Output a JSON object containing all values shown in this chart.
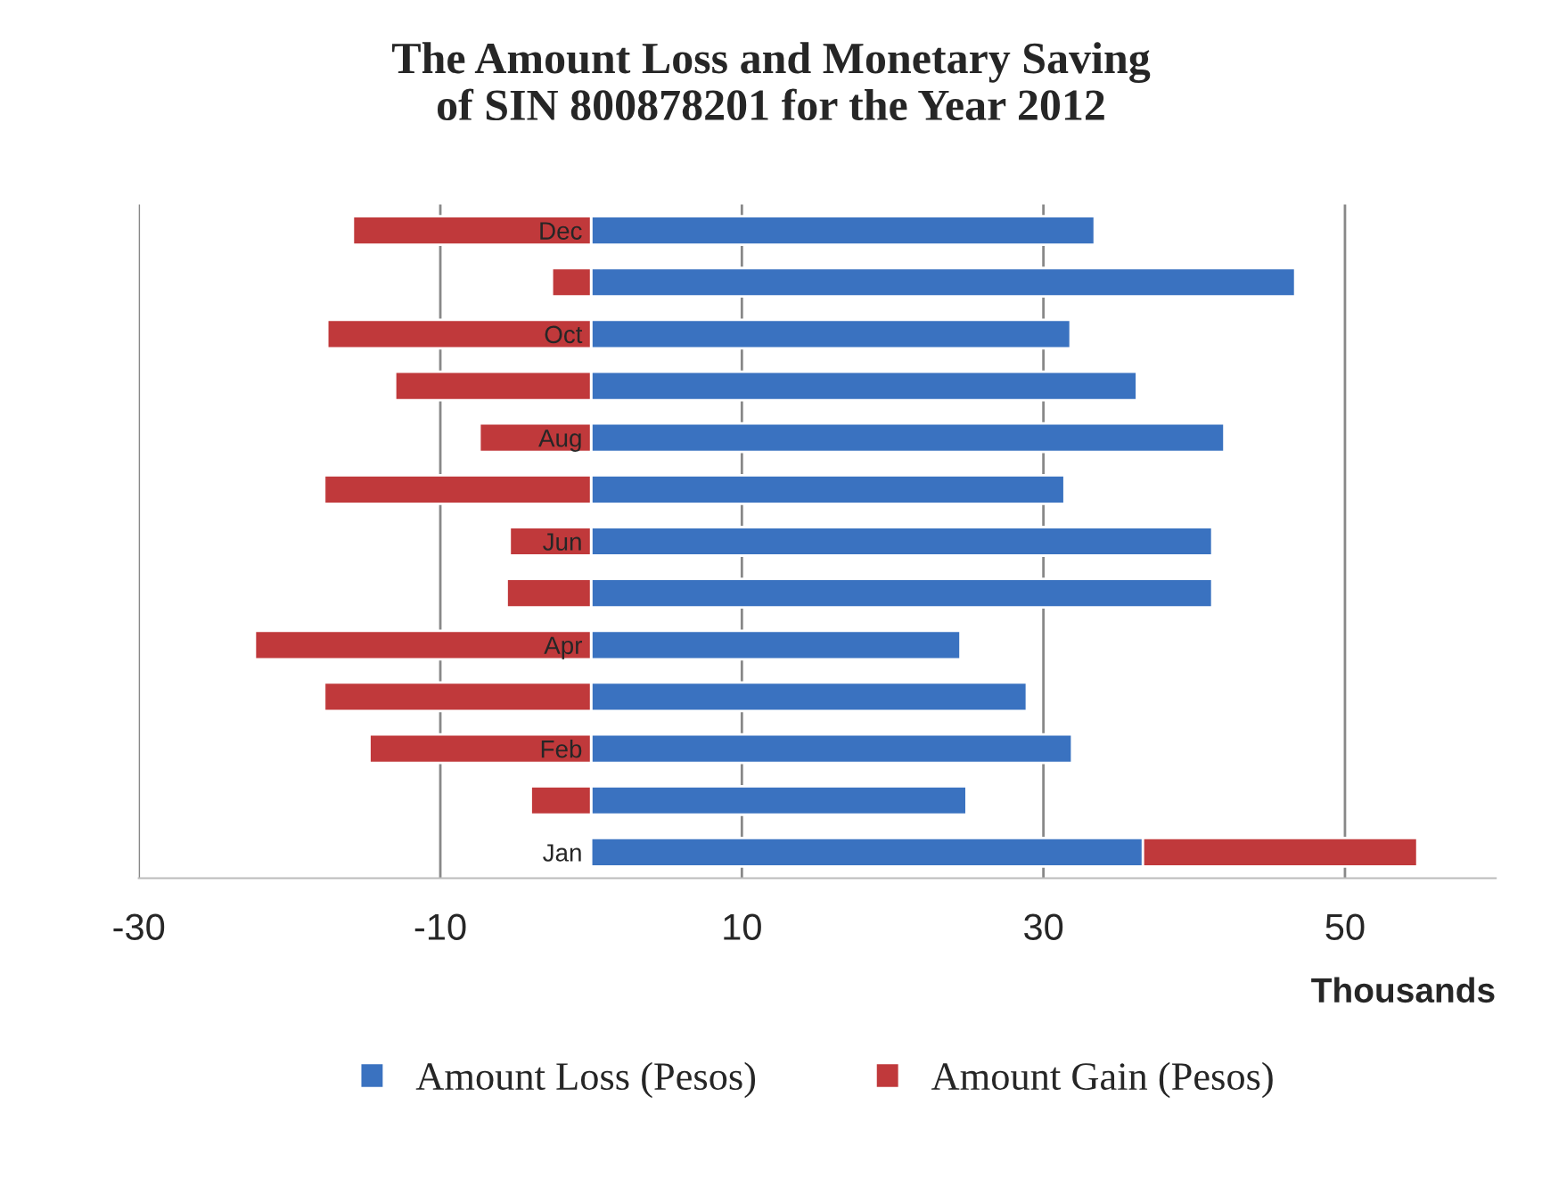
{
  "chart_data": {
    "type": "bar",
    "orientation": "horizontal",
    "stacked": true,
    "title": "The Amount Loss and Monetary Saving\nof SIN 800878201 for the Year 2012",
    "xlabel": "Thousands",
    "categories": [
      "Dec",
      null,
      "Oct",
      null,
      "Aug",
      null,
      "Jun",
      null,
      "Apr",
      null,
      "Feb",
      null,
      "Jan"
    ],
    "series": [
      {
        "name": "Amount Loss (Pesos)",
        "color": "#3a72c0",
        "values": [
          33.4,
          46.7,
          31.8,
          36.2,
          42.0,
          31.4,
          41.2,
          41.2,
          24.5,
          28.9,
          31.9,
          24.9,
          36.6
        ]
      },
      {
        "name": "Amount Gain (Pesos)",
        "color": "#c0393b",
        "values": [
          -15.8,
          -2.6,
          -17.5,
          -13.0,
          -7.4,
          -17.7,
          -5.4,
          -5.6,
          -22.3,
          -17.7,
          -14.7,
          -4.0,
          18.2
        ]
      }
    ],
    "xlim": [
      -30,
      60
    ],
    "xticks": [
      -30,
      -10,
      10,
      30,
      50
    ],
    "grid": "x",
    "legend": "bottom"
  }
}
